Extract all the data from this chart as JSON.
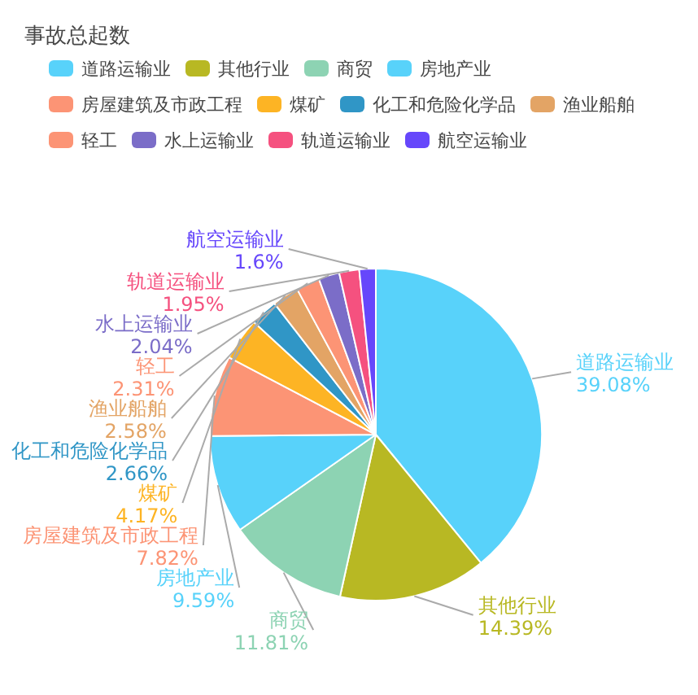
{
  "chart_data": {
    "type": "pie",
    "title": "事故总起数",
    "legend": "top left",
    "categories": [
      "道路运输业",
      "其他行业",
      "商贸",
      "房地产业",
      "房屋建筑及市政工程",
      "煤矿",
      "化工和危险化学品",
      "渔业船舶",
      "轻工",
      "水上运输业",
      "轨道运输业",
      "航空运输业"
    ],
    "values": [
      39.08,
      14.39,
      11.81,
      9.59,
      7.82,
      4.17,
      2.66,
      2.58,
      2.31,
      2.04,
      1.95,
      1.6
    ],
    "colors": [
      "#58d2fa",
      "#b8b823",
      "#8dd3b3",
      "#58d2fa",
      "#fc9475",
      "#fdb424",
      "#3096c6",
      "#e3a465",
      "#fc9475",
      "#7b6dc8",
      "#f5517f",
      "#6647fb"
    ],
    "value_labels": [
      "39.08%",
      "14.39%",
      "11.81%",
      "9.59%",
      "7.82%",
      "4.17%",
      "2.66%",
      "2.58%",
      "2.31%",
      "2.04%",
      "1.95%",
      "1.6%"
    ]
  }
}
